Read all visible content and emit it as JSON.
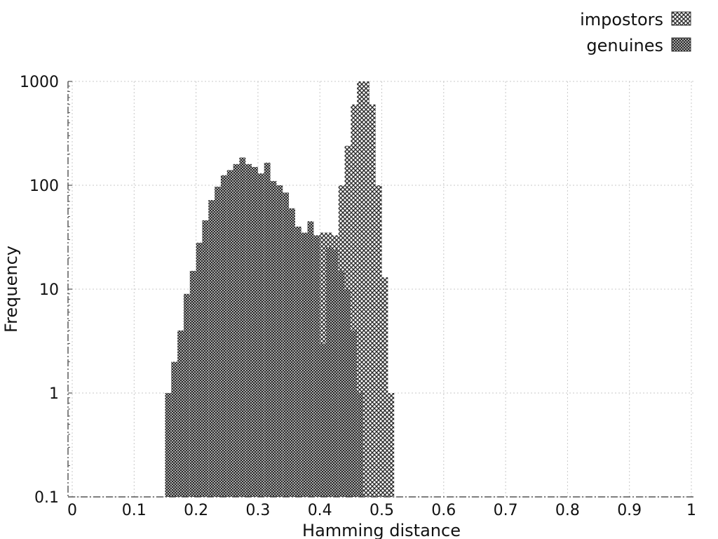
{
  "chart_data": {
    "type": "bar",
    "chart_subtype": "histogram",
    "xlabel": "Hamming distance",
    "ylabel": "Frequency",
    "xlim": [
      0,
      1
    ],
    "ylim": [
      0.1,
      1000
    ],
    "y_scale": "log",
    "grid": true,
    "legend_position": "top-right",
    "bin_width": 0.01,
    "x_ticks": [
      "0",
      "0.1",
      "0.2",
      "0.3",
      "0.4",
      "0.5",
      "0.6",
      "0.7",
      "0.8",
      "0.9",
      "1"
    ],
    "y_ticks": [
      "0.1",
      "1",
      "10",
      "100",
      "1000"
    ],
    "series": [
      {
        "name": "impostors",
        "pattern": "coarse-crosshatch",
        "bins": [
          {
            "x": 0.4,
            "y": 35
          },
          {
            "x": 0.41,
            "y": 35
          },
          {
            "x": 0.42,
            "y": 33
          },
          {
            "x": 0.43,
            "y": 100
          },
          {
            "x": 0.44,
            "y": 240
          },
          {
            "x": 0.45,
            "y": 600
          },
          {
            "x": 0.46,
            "y": 1000
          },
          {
            "x": 0.47,
            "y": 1000
          },
          {
            "x": 0.48,
            "y": 600
          },
          {
            "x": 0.49,
            "y": 100
          },
          {
            "x": 0.5,
            "y": 13
          },
          {
            "x": 0.51,
            "y": 1
          }
        ]
      },
      {
        "name": "genuines",
        "pattern": "fine-crosshatch",
        "bins": [
          {
            "x": 0.15,
            "y": 1
          },
          {
            "x": 0.16,
            "y": 2
          },
          {
            "x": 0.17,
            "y": 4
          },
          {
            "x": 0.18,
            "y": 9
          },
          {
            "x": 0.19,
            "y": 15
          },
          {
            "x": 0.2,
            "y": 28
          },
          {
            "x": 0.21,
            "y": 46
          },
          {
            "x": 0.22,
            "y": 72
          },
          {
            "x": 0.23,
            "y": 97
          },
          {
            "x": 0.24,
            "y": 125
          },
          {
            "x": 0.25,
            "y": 140
          },
          {
            "x": 0.26,
            "y": 160
          },
          {
            "x": 0.27,
            "y": 185
          },
          {
            "x": 0.28,
            "y": 160
          },
          {
            "x": 0.29,
            "y": 150
          },
          {
            "x": 0.3,
            "y": 130
          },
          {
            "x": 0.31,
            "y": 165
          },
          {
            "x": 0.32,
            "y": 110
          },
          {
            "x": 0.33,
            "y": 100
          },
          {
            "x": 0.34,
            "y": 85
          },
          {
            "x": 0.35,
            "y": 60
          },
          {
            "x": 0.36,
            "y": 40
          },
          {
            "x": 0.37,
            "y": 35
          },
          {
            "x": 0.38,
            "y": 45
          },
          {
            "x": 0.39,
            "y": 33
          },
          {
            "x": 0.4,
            "y": 3
          },
          {
            "x": 0.41,
            "y": 25
          },
          {
            "x": 0.42,
            "y": 24
          },
          {
            "x": 0.43,
            "y": 15
          },
          {
            "x": 0.44,
            "y": 10
          },
          {
            "x": 0.45,
            "y": 4
          },
          {
            "x": 0.46,
            "y": 1
          }
        ]
      }
    ]
  }
}
